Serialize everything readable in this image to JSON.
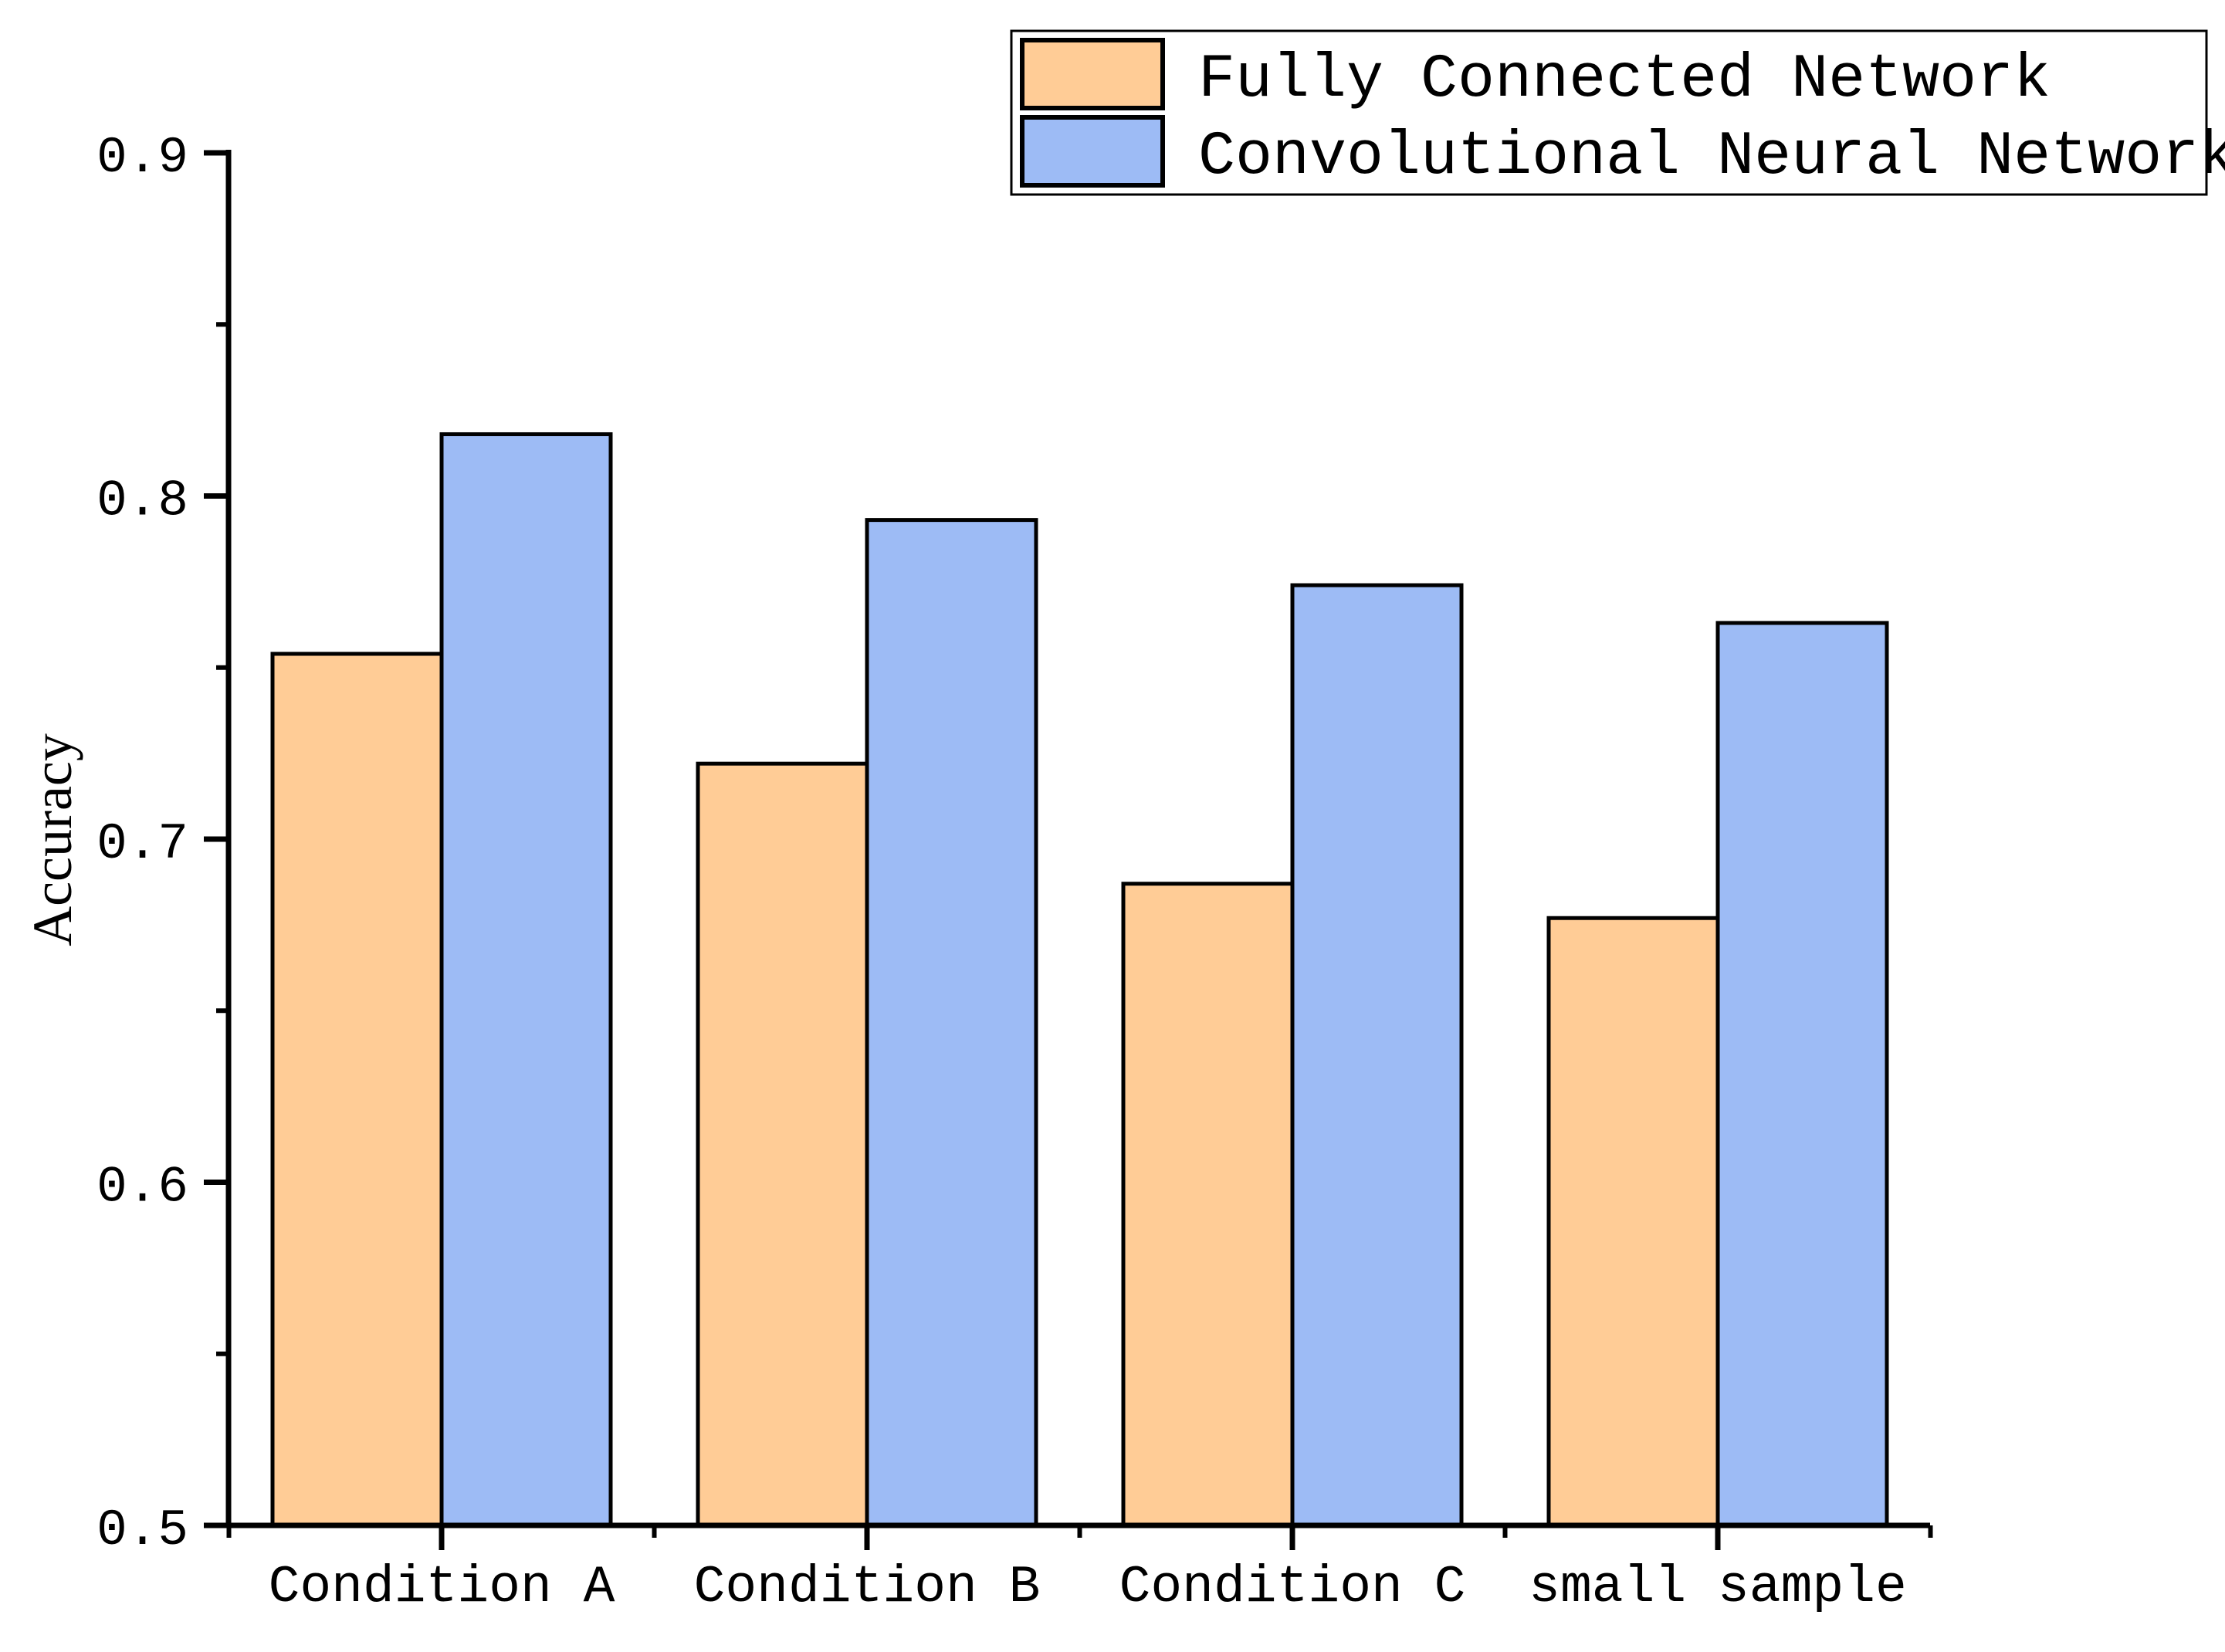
{
  "chart_data": {
    "type": "bar",
    "title": "",
    "xlabel": "",
    "ylabel": "Accuracy",
    "categories": [
      "Condition A",
      "Condition B",
      "Condition C",
      "small sample"
    ],
    "series": [
      {
        "name": "Fully Connected Network",
        "color": "#FFCC96",
        "values": [
          0.754,
          0.722,
          0.687,
          0.677
        ]
      },
      {
        "name": "Convolutional Neural Network",
        "color": "#9DBBF5",
        "values": [
          0.818,
          0.793,
          0.774,
          0.763
        ]
      }
    ],
    "ylim": [
      0.5,
      0.9
    ],
    "yticks": [
      "0.5",
      "0.6",
      "0.7",
      "0.8",
      "0.9"
    ],
    "grid": false,
    "legend_position": "top-right"
  }
}
